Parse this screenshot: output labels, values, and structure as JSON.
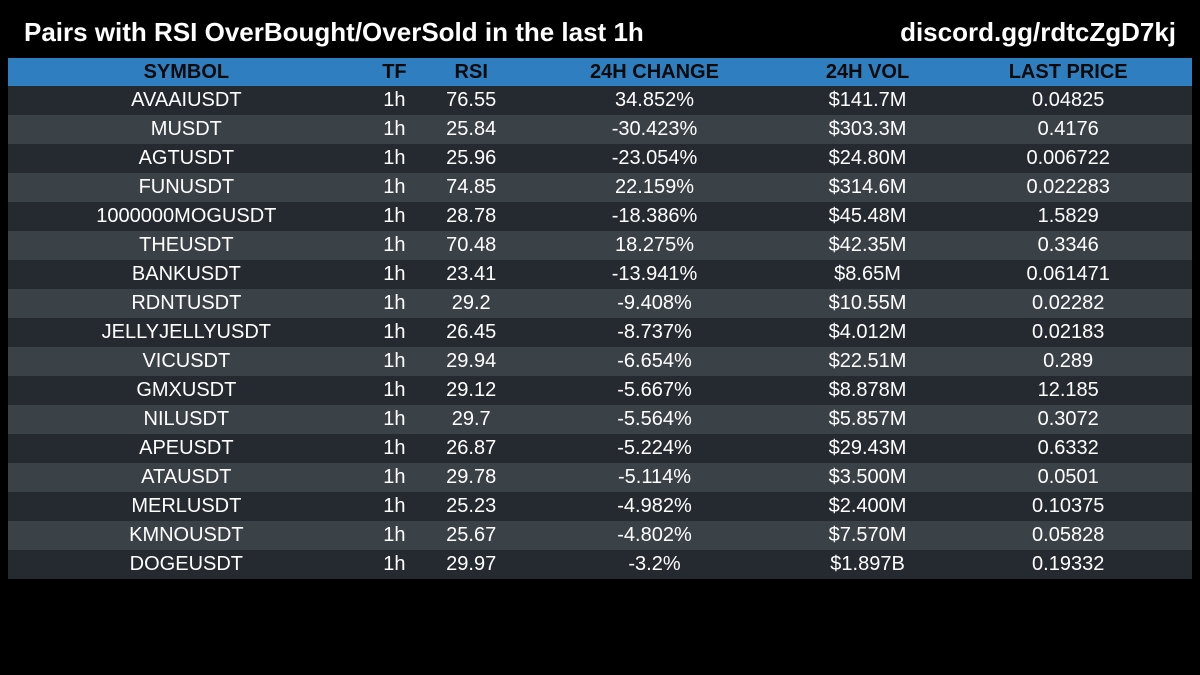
{
  "header": {
    "title": "Pairs with RSI OverBought/OverSold in the last 1h",
    "link": "discord.gg/rdtcZgD7kj"
  },
  "table": {
    "columns": [
      "SYMBOL",
      "TF",
      "RSI",
      "24H CHANGE",
      "24H VOL",
      "LAST PRICE"
    ],
    "rows": [
      [
        "AVAAIUSDT",
        "1h",
        "76.55",
        "34.852%",
        "$141.7M",
        "0.04825"
      ],
      [
        "MUSDT",
        "1h",
        "25.84",
        "-30.423%",
        "$303.3M",
        "0.4176"
      ],
      [
        "AGTUSDT",
        "1h",
        "25.96",
        "-23.054%",
        "$24.80M",
        "0.006722"
      ],
      [
        "FUNUSDT",
        "1h",
        "74.85",
        "22.159%",
        "$314.6M",
        "0.022283"
      ],
      [
        "1000000MOGUSDT",
        "1h",
        "28.78",
        "-18.386%",
        "$45.48M",
        "1.5829"
      ],
      [
        "THEUSDT",
        "1h",
        "70.48",
        "18.275%",
        "$42.35M",
        "0.3346"
      ],
      [
        "BANKUSDT",
        "1h",
        "23.41",
        "-13.941%",
        "$8.65M",
        "0.061471"
      ],
      [
        "RDNTUSDT",
        "1h",
        "29.2",
        "-9.408%",
        "$10.55M",
        "0.02282"
      ],
      [
        "JELLYJELLYUSDT",
        "1h",
        "26.45",
        "-8.737%",
        "$4.012M",
        "0.02183"
      ],
      [
        "VICUSDT",
        "1h",
        "29.94",
        "-6.654%",
        "$22.51M",
        "0.289"
      ],
      [
        "GMXUSDT",
        "1h",
        "29.12",
        "-5.667%",
        "$8.878M",
        "12.185"
      ],
      [
        "NILUSDT",
        "1h",
        "29.7",
        "-5.564%",
        "$5.857M",
        "0.3072"
      ],
      [
        "APEUSDT",
        "1h",
        "26.87",
        "-5.224%",
        "$29.43M",
        "0.6332"
      ],
      [
        "ATAUSDT",
        "1h",
        "29.78",
        "-5.114%",
        "$3.500M",
        "0.0501"
      ],
      [
        "MERLUSDT",
        "1h",
        "25.23",
        "-4.982%",
        "$2.400M",
        "0.10375"
      ],
      [
        "KMNOUSDT",
        "1h",
        "25.67",
        "-4.802%",
        "$7.570M",
        "0.05828"
      ],
      [
        "DOGEUSDT",
        "1h",
        "29.97",
        "-3.2%",
        "$1.897B",
        "0.19332"
      ]
    ]
  },
  "colors": {
    "background": "#000000",
    "header_row": "#2f7fc0",
    "row_dark": "#242a30",
    "row_light": "#3a4147",
    "text": "#ffffff"
  }
}
